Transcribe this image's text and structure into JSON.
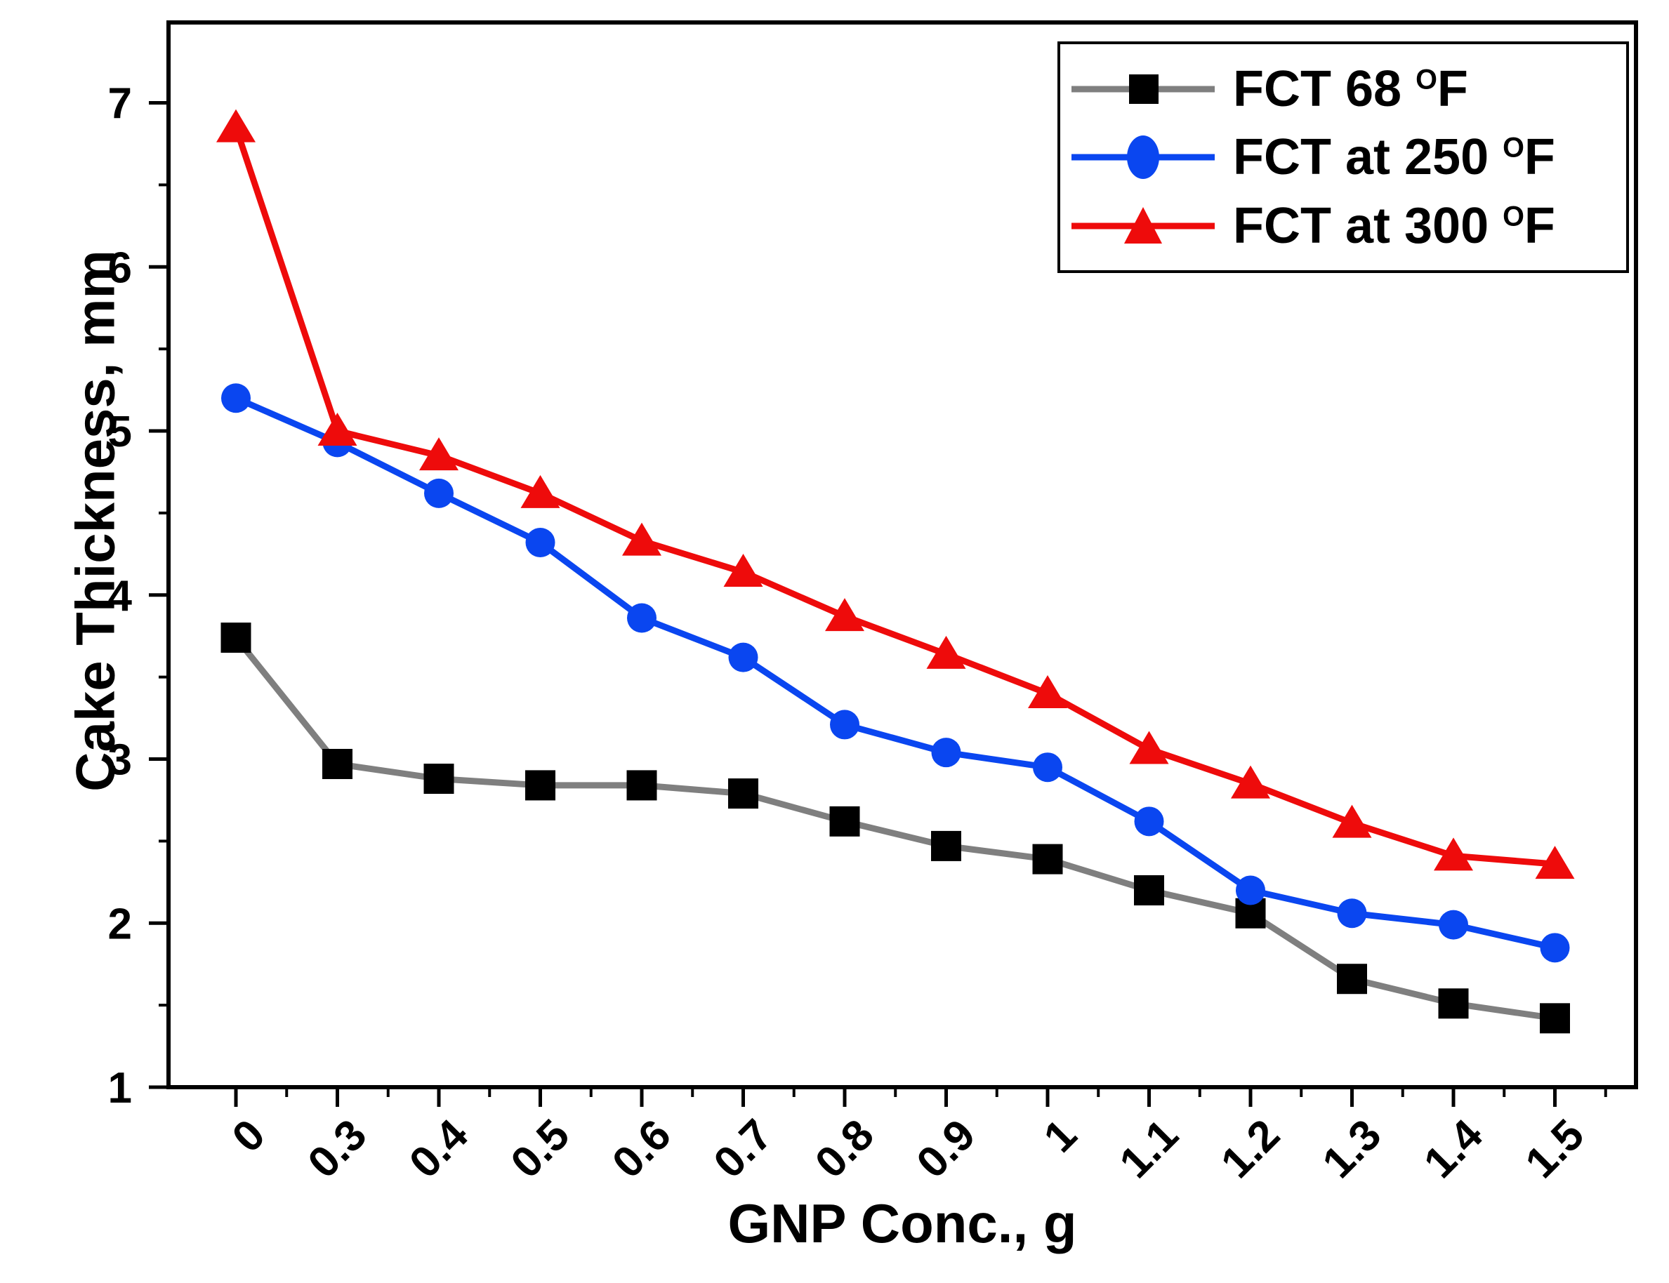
{
  "figure": {
    "background": "#ffffff",
    "border_color": "#000000"
  },
  "chart_data": {
    "type": "line",
    "title": "",
    "xlabel": "GNP Conc., g",
    "ylabel": "Cake Thickness, mm",
    "categories": [
      "0",
      "0.3",
      "0.4",
      "0.5",
      "0.6",
      "0.7",
      "0.8",
      "0.9",
      "1",
      "1.1",
      "1.2",
      "1.3",
      "1.4",
      "1.5"
    ],
    "y_ticks": [
      "1",
      "2",
      "3",
      "4",
      "5",
      "6",
      "7"
    ],
    "ylim": [
      1,
      7.49
    ],
    "grid": false,
    "legend_position": "top-right",
    "tick_style": "outward, minor ticks at category midpoints and 0.5 y-steps",
    "series": [
      {
        "name": "FCT 68 °F",
        "legend": {
          "pre": "FCT 68 ",
          "sup": "O",
          "post": "F"
        },
        "marker": "square",
        "marker_color": "#000000",
        "line_color": "#7f7f7f",
        "values": [
          3.74,
          2.97,
          2.88,
          2.84,
          2.84,
          2.79,
          2.62,
          2.47,
          2.39,
          2.2,
          2.06,
          1.66,
          1.51,
          1.42
        ]
      },
      {
        "name": "FCT at 250 °F",
        "legend": {
          "pre": "FCT at 250 ",
          "sup": "O",
          "post": "F"
        },
        "marker": "circle",
        "marker_color": "#0a46f0",
        "line_color": "#0a46f0",
        "values": [
          5.2,
          4.93,
          4.62,
          4.32,
          3.86,
          3.62,
          3.21,
          3.04,
          2.95,
          2.62,
          2.2,
          2.06,
          1.99,
          1.85
        ]
      },
      {
        "name": "FCT at 300 °F",
        "legend": {
          "pre": "FCT at 300 ",
          "sup": "O",
          "post": "F"
        },
        "marker": "triangle",
        "marker_color": "#ee0b0b",
        "line_color": "#ee0b0b",
        "values": [
          6.85,
          5.0,
          4.85,
          4.62,
          4.33,
          4.14,
          3.87,
          3.64,
          3.4,
          3.06,
          2.85,
          2.61,
          2.41,
          2.36
        ]
      }
    ]
  }
}
